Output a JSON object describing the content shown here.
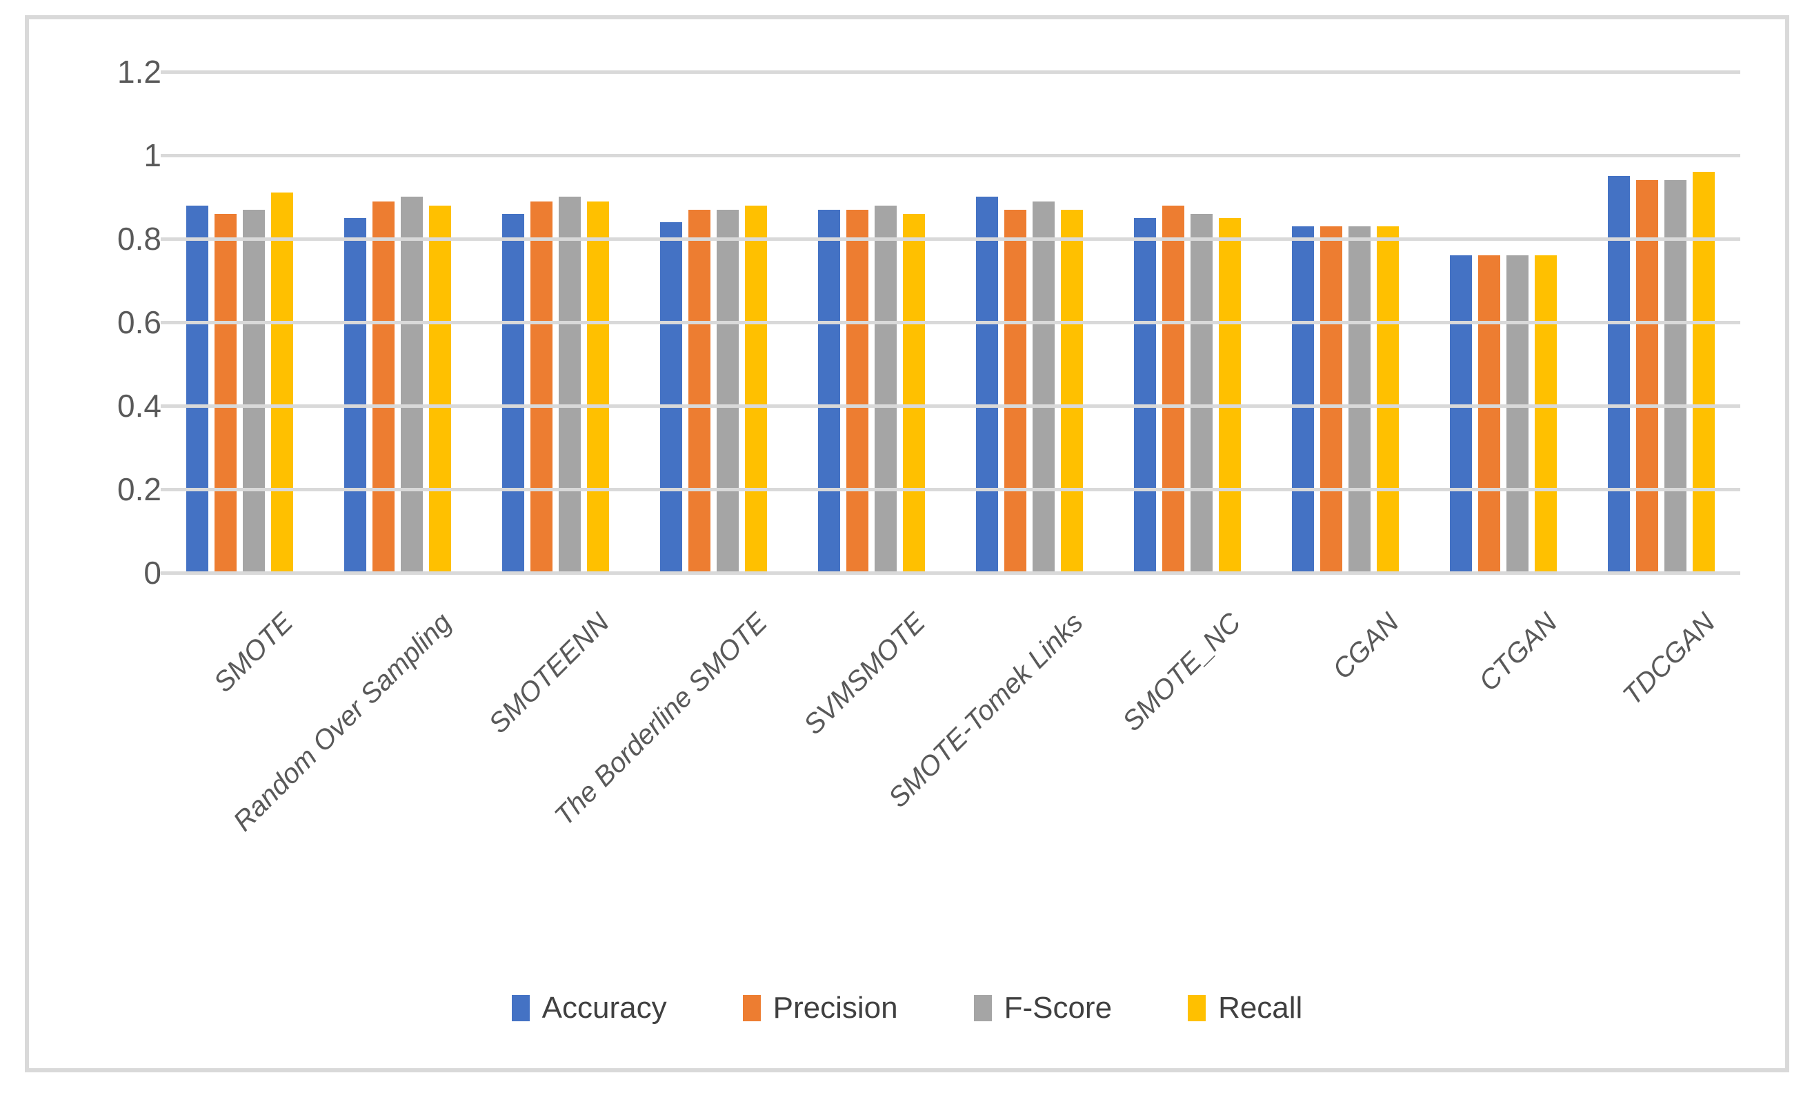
{
  "chart_data": {
    "type": "bar",
    "title": "",
    "xlabel": "",
    "ylabel": "",
    "ylim": [
      0,
      1.2
    ],
    "yticks": [
      0,
      0.2,
      0.4,
      0.6,
      0.8,
      1,
      1.2
    ],
    "ytick_labels": [
      "0",
      "0.2",
      "0.4",
      "0.6",
      "0.8",
      "1",
      "1.2"
    ],
    "grid": true,
    "legend_position": "bottom",
    "categories": [
      "SMOTE",
      "Random Over Sampling",
      "SMOTEENN",
      "The Borderline SMOTE",
      "SVMSMOTE",
      "SMOTE-Tomek Links",
      "SMOTE_NC",
      "CGAN",
      "CTGAN",
      "TDCGAN"
    ],
    "series": [
      {
        "name": "Accuracy",
        "color": "#4472C4",
        "values": [
          0.88,
          0.85,
          0.86,
          0.84,
          0.87,
          0.9,
          0.85,
          0.83,
          0.76,
          0.95
        ]
      },
      {
        "name": "Precision",
        "color": "#ED7D31",
        "values": [
          0.86,
          0.89,
          0.89,
          0.87,
          0.87,
          0.87,
          0.88,
          0.83,
          0.76,
          0.94
        ]
      },
      {
        "name": "F-Score",
        "color": "#A5A5A5",
        "values": [
          0.87,
          0.9,
          0.9,
          0.87,
          0.88,
          0.89,
          0.86,
          0.83,
          0.76,
          0.94
        ]
      },
      {
        "name": "Recall",
        "color": "#FFC000",
        "values": [
          0.91,
          0.88,
          0.89,
          0.88,
          0.86,
          0.87,
          0.85,
          0.83,
          0.76,
          0.96
        ]
      }
    ]
  },
  "legend": {
    "items": [
      {
        "label": "Accuracy",
        "color": "#4472C4"
      },
      {
        "label": "Precision",
        "color": "#ED7D31"
      },
      {
        "label": "F-Score",
        "color": "#A5A5A5"
      },
      {
        "label": "Recall",
        "color": "#FFC000"
      }
    ]
  },
  "style": {
    "background": "#FFFFFF",
    "gridline_color": "#D9D9D9",
    "frame_border_color": "#D9D9D9",
    "axis_text_color": "#595959",
    "legend_text_color": "#404040"
  }
}
